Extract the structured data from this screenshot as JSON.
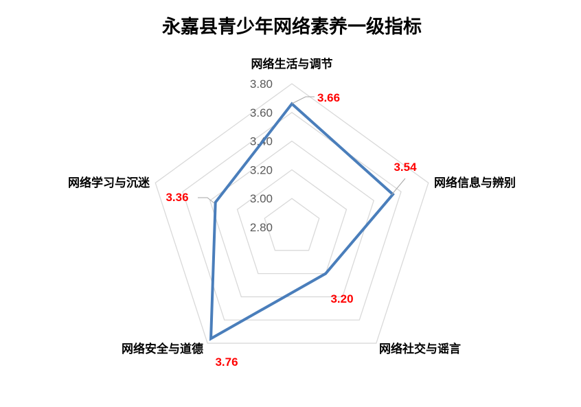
{
  "chart_data": {
    "type": "radar",
    "title": "永嘉县青少年网络素养一级指标",
    "categories": [
      "网络生活与调节",
      "网络信息与辨别",
      "网络社交与谣言",
      "网络安全与道德",
      "网络学习与沉迷"
    ],
    "values": [
      3.66,
      3.54,
      3.2,
      3.76,
      3.36
    ],
    "data_labels": [
      "3.66",
      "3.54",
      "3.20",
      "3.76",
      "3.36"
    ],
    "rlim": [
      2.8,
      3.8
    ],
    "ticks": [
      "2.80",
      "3.00",
      "3.20",
      "3.40",
      "3.60",
      "3.80"
    ],
    "grid": true,
    "legend": "none",
    "colors": {
      "series": "#4a7ebb",
      "grid": "#d9d9d9",
      "data_label": "#ff0000",
      "leader": "#a6a6a6"
    }
  }
}
